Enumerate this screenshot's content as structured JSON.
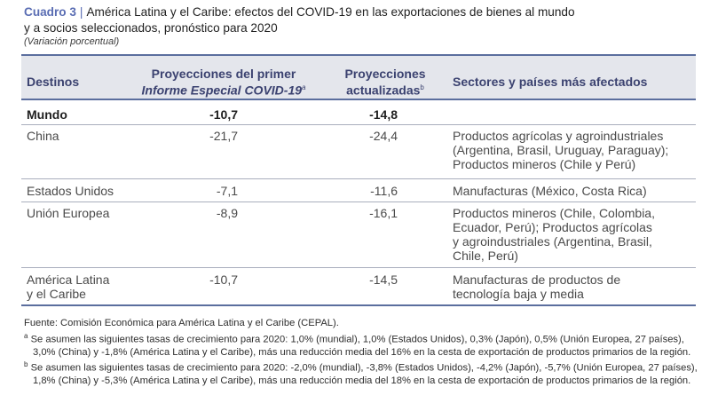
{
  "title": {
    "label": "Cuadro 3",
    "separator": "|",
    "line1": "América Latina y el Caribe: efectos del COVID-19 en las exportaciones de bienes al mundo",
    "line2": "y a socios seleccionados, pronóstico para 2020",
    "subtitle": "(Variación porcentual)"
  },
  "table": {
    "headers": {
      "destinos": "Destinos",
      "proj1_line1": "Proyecciones del primer",
      "proj1_line2": "Informe Especial COVID-19",
      "proj1_sup": "a",
      "proj2_line1": "Proyecciones",
      "proj2_line2": "actualizadas",
      "proj2_sup": "b",
      "sectores": "Sectores y países más afectados"
    },
    "rows": [
      {
        "destino": "Mundo",
        "proj1": "-10,7",
        "proj2": "-14,8",
        "sectores": []
      },
      {
        "destino": "China",
        "proj1": "-21,7",
        "proj2": "-24,4",
        "sectores": [
          "Productos agrícolas y agroindustriales",
          "(Argentina, Brasil, Uruguay, Paraguay);",
          "Productos mineros (Chile y Perú)"
        ]
      },
      {
        "destino": "Estados Unidos",
        "proj1": "-7,1",
        "proj2": "-11,6",
        "sectores": [
          "Manufacturas (México, Costa Rica)"
        ]
      },
      {
        "destino": "Unión Europea",
        "proj1": "-8,9",
        "proj2": "-16,1",
        "sectores": [
          "Productos mineros (Chile, Colombia,",
          "Ecuador, Perú); Productos agrícolas",
          "y agroindustriales (Argentina, Brasil,",
          "Chile, Perú)"
        ]
      },
      {
        "destino_line1": "América Latina",
        "destino_line2": "y el Caribe",
        "proj1": "-10,7",
        "proj2": "-14,5",
        "sectores": [
          "Manufacturas de productos de",
          "tecnología baja y media"
        ]
      }
    ]
  },
  "notes": {
    "source": "Fuente: Comisión Económica para América Latina y el Caribe (CEPAL).",
    "a_mark": "a",
    "a_line1": "Se asumen las siguientes tasas de crecimiento para 2020: 1,0% (mundial), 1,0% (Estados Unidos), 0,3% (Japón), 0,5% (Unión Europea, 27 países),",
    "a_line2": "3,0% (China) y -1,8% (América Latina y el Caribe), más una reducción media del 16% en la cesta de exportación de productos primarios de la región.",
    "b_mark": "b",
    "b_line1": "Se asumen las siguientes tasas de crecimiento para 2020: -2,0% (mundial), -3,8% (Estados Unidos), -4,2% (Japón), -5,7% (Unión Europea, 27 países),",
    "b_line2": "1,8% (China) y -5,3% (América Latina y el Caribe), más una reducción media del 18% en la cesta de exportación de productos primarios de la región."
  }
}
